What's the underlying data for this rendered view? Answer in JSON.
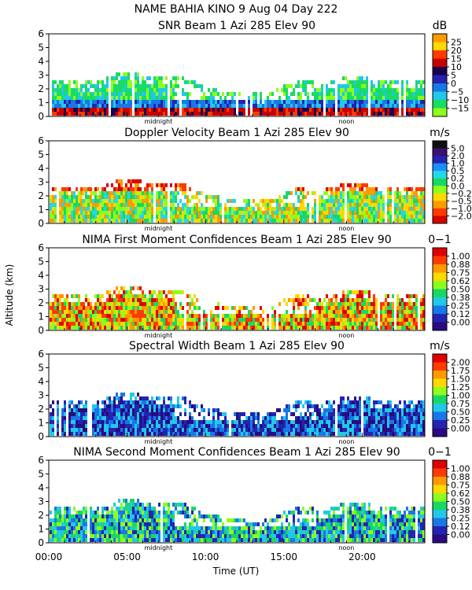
{
  "header": "NAME BAHIA KINO    9 Aug 04 Day 222",
  "ylabel": "Altitude (km)",
  "xlabel": "Time (UT)",
  "x_ticks": [
    "00:00",
    "05:00",
    "10:00",
    "15:00",
    "20:00"
  ],
  "markers": {
    "midnight": "midnight",
    "noon": "noon"
  },
  "chart_data": [
    {
      "type": "heatmap",
      "title": "SNR Beam 1 Azi 285 Elev 90",
      "unit": "dB",
      "xlim": [
        0,
        24
      ],
      "ylim": [
        0,
        6
      ],
      "yticks": [
        0,
        1,
        2,
        3,
        4,
        5,
        6
      ],
      "colorbar": {
        "labels": [
          "25",
          "20",
          "15",
          "10",
          "5",
          "0",
          "−5",
          "−10",
          "−15"
        ],
        "colors": [
          "#ff9a00",
          "#ffd800",
          "#ff3a00",
          "#c80000",
          "#1a0050",
          "#2424b0",
          "#1878e8",
          "#22c8e8",
          "#18dc64",
          "#8cff1c"
        ]
      }
    },
    {
      "type": "heatmap",
      "title": "Doppler Velocity Beam 1 Azi 285 Elev 90",
      "unit": "m/s",
      "xlim": [
        0,
        24
      ],
      "ylim": [
        0,
        6
      ],
      "yticks": [
        0,
        1,
        2,
        3,
        4,
        5,
        6
      ],
      "colorbar": {
        "labels": [
          "5.0",
          "2.0",
          "1.0",
          "0.5",
          "0.2",
          "0.0",
          "−0.2",
          "−0.5",
          "−1.0",
          "−2.0"
        ],
        "colors": [
          "#101010",
          "#3c1070",
          "#2424b0",
          "#1890ff",
          "#22d8e8",
          "#18d864",
          "#8cff1c",
          "#ffd800",
          "#ff9a00",
          "#ff3a00",
          "#d80000"
        ]
      }
    },
    {
      "type": "heatmap",
      "title": "NIMA First Moment Confidences Beam 1 Azi 285 Elev 90",
      "unit": "0−1",
      "xlim": [
        0,
        24
      ],
      "ylim": [
        0,
        6
      ],
      "yticks": [
        0,
        1,
        2,
        3,
        4,
        5,
        6
      ],
      "colorbar": {
        "labels": [
          "1.00",
          "0.88",
          "0.75",
          "0.62",
          "0.50",
          "0.38",
          "0.25",
          "0.12",
          "0.00"
        ],
        "colors": [
          "#e00000",
          "#ff3a00",
          "#ff9a00",
          "#ffd800",
          "#8cff1c",
          "#18d864",
          "#22c8e8",
          "#1878e8",
          "#2424b0",
          "#2a0a80"
        ]
      }
    },
    {
      "type": "heatmap",
      "title": "Spectral Width Beam 1 Azi 285 Elev 90",
      "unit": "m/s",
      "xlim": [
        0,
        24
      ],
      "ylim": [
        0,
        6
      ],
      "yticks": [
        0,
        1,
        2,
        3,
        4,
        5,
        6
      ],
      "colorbar": {
        "labels": [
          "2.00",
          "1.75",
          "1.50",
          "1.25",
          "1.00",
          "0.75",
          "0.50",
          "0.25",
          "0.00"
        ],
        "colors": [
          "#e00000",
          "#ff3a00",
          "#ff9a00",
          "#ffd800",
          "#8cff1c",
          "#18d864",
          "#22c8e8",
          "#1878e8",
          "#2424b0",
          "#2a0a80"
        ]
      }
    },
    {
      "type": "heatmap",
      "title": "NIMA Second Moment Confidences Beam 1 Azi 285 Elev 90",
      "unit": "0−1",
      "xlim": [
        0,
        24
      ],
      "ylim": [
        0,
        6
      ],
      "yticks": [
        0,
        1,
        2,
        3,
        4,
        5,
        6
      ],
      "colorbar": {
        "labels": [
          "1.00",
          "0.88",
          "0.75",
          "0.62",
          "0.50",
          "0.38",
          "0.25",
          "0.12",
          "0.00"
        ],
        "colors": [
          "#e00000",
          "#ff3a00",
          "#ff9a00",
          "#ffd800",
          "#8cff1c",
          "#18d864",
          "#22c8e8",
          "#1878e8",
          "#2424b0",
          "#2a0a80"
        ]
      }
    }
  ]
}
